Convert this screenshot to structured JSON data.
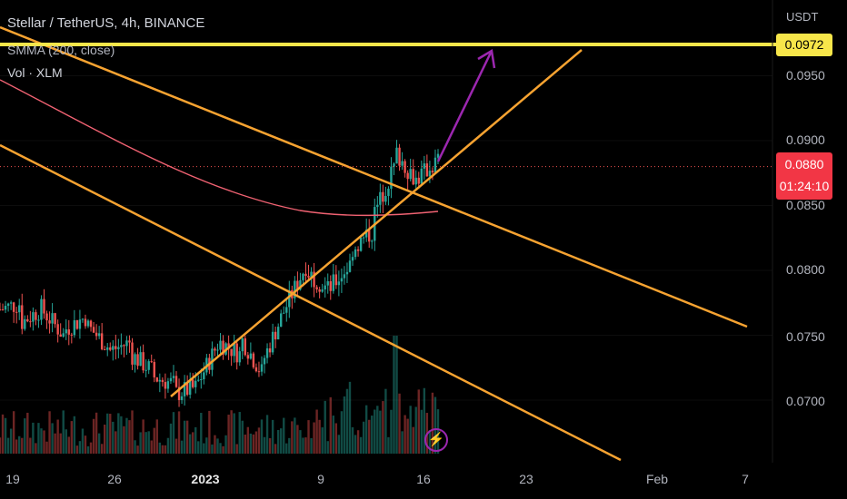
{
  "header": {
    "symbol": "Stellar / TetherUS",
    "interval": "4h",
    "exchange": "BINANCE",
    "indicator": "SMMA (200, close)",
    "volume_label": "Vol · XLM"
  },
  "axis": {
    "currency": "USDT",
    "price_labels": [
      "0.0950",
      "0.0900",
      "0.0850",
      "0.0800",
      "0.0750",
      "0.0700"
    ],
    "date_labels": [
      "19",
      "26",
      "2023",
      "9",
      "16",
      "23",
      "Feb",
      "7"
    ]
  },
  "badges": {
    "target_price": "0.0972",
    "last_price": "0.0880",
    "countdown": "01:24:10"
  },
  "colors": {
    "up": "#26a69a",
    "down": "#ef5350",
    "smma": "#f06272",
    "trendline": "#f7a331",
    "target_line": "#f7e64a",
    "arrow": "#9c27b0"
  },
  "icons": {
    "lightning": "lightning-icon"
  },
  "chart_data": {
    "type": "candlestick",
    "title": "Stellar / TetherUS, 4h, BINANCE",
    "ylim": [
      0.0685,
      0.099
    ],
    "yticks": [
      0.07,
      0.075,
      0.08,
      0.085,
      0.09,
      0.095
    ],
    "x_tick_labels": [
      "19",
      "26",
      "2023",
      "9",
      "16",
      "23",
      "Feb",
      "7"
    ],
    "price_path": [
      [
        0.077,
        0.0775
      ],
      [
        0.076,
        0.0772
      ],
      [
        0.0768,
        0.0748
      ],
      [
        0.0755,
        0.0765
      ],
      [
        0.0757,
        0.074
      ],
      [
        0.0738,
        0.0745
      ],
      [
        0.0735,
        0.0722
      ],
      [
        0.0718,
        0.0712
      ],
      [
        0.0705,
        0.071
      ],
      [
        0.0712,
        0.0745
      ],
      [
        0.0745,
        0.0735
      ],
      [
        0.0748,
        0.072
      ],
      [
        0.073,
        0.077
      ],
      [
        0.077,
        0.0805
      ],
      [
        0.08,
        0.0785
      ],
      [
        0.0785,
        0.0805
      ],
      [
        0.0815,
        0.083
      ],
      [
        0.084,
        0.088
      ],
      [
        0.0892,
        0.087
      ],
      [
        0.087,
        0.0885
      ],
      [
        0.088,
        0.088
      ]
    ],
    "smma_path": [
      [
        0.096,
        0.0935
      ],
      [
        0.0905,
        0.0885
      ],
      [
        0.087,
        0.0855
      ],
      [
        0.0848,
        0.0843
      ],
      [
        0.0842,
        0.0844
      ]
    ],
    "target_level": 0.0972,
    "last_price": 0.088
  }
}
